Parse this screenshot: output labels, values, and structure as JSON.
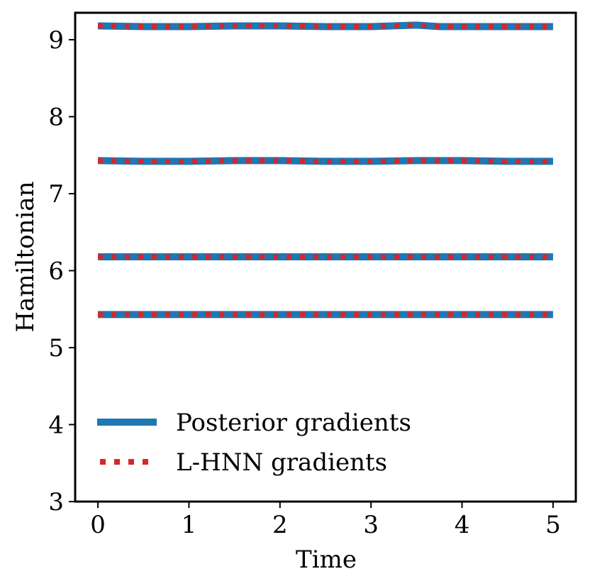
{
  "chart_data": {
    "type": "line",
    "xlabel": "Time",
    "ylabel": "Hamiltonian",
    "xlim": [
      -0.25,
      5.25
    ],
    "ylim": [
      3,
      9.35
    ],
    "xticks": [
      0,
      1,
      2,
      3,
      4,
      5
    ],
    "yticks": [
      3,
      4,
      5,
      6,
      7,
      8,
      9
    ],
    "xtick_labels": [
      "0",
      "1",
      "2",
      "3",
      "4",
      "5"
    ],
    "ytick_labels": [
      "3",
      "4",
      "5",
      "6",
      "7",
      "8",
      "9"
    ],
    "grid": false,
    "legend_position": "lower-left",
    "series": [
      {
        "name": "Posterior gradients",
        "color": "#1f77b4",
        "style": "solid",
        "trajectories": [
          {
            "x": [
              0,
              0.5,
              1,
              1.5,
              2,
              2.5,
              3,
              3.5,
              3.75,
              4,
              4.5,
              5
            ],
            "y": [
              9.18,
              9.17,
              9.17,
              9.18,
              9.18,
              9.17,
              9.17,
              9.19,
              9.17,
              9.17,
              9.17,
              9.17
            ]
          },
          {
            "x": [
              0,
              0.5,
              1,
              1.5,
              2,
              2.5,
              3,
              3.5,
              4,
              4.5,
              5
            ],
            "y": [
              7.43,
              7.42,
              7.42,
              7.43,
              7.43,
              7.42,
              7.42,
              7.43,
              7.43,
              7.42,
              7.42
            ]
          },
          {
            "x": [
              0,
              0.5,
              1,
              1.5,
              2,
              2.5,
              3,
              3.5,
              4,
              4.5,
              5
            ],
            "y": [
              6.18,
              6.18,
              6.18,
              6.18,
              6.18,
              6.18,
              6.18,
              6.18,
              6.18,
              6.18,
              6.18
            ]
          },
          {
            "x": [
              0,
              0.5,
              1,
              1.5,
              2,
              2.5,
              3,
              3.5,
              4,
              4.5,
              5
            ],
            "y": [
              5.43,
              5.43,
              5.43,
              5.43,
              5.43,
              5.43,
              5.43,
              5.43,
              5.43,
              5.43,
              5.43
            ]
          }
        ]
      },
      {
        "name": "L-HNN gradients",
        "color": "#d62728",
        "style": "dotted",
        "trajectories": [
          {
            "x": [
              0,
              0.5,
              1,
              1.5,
              2,
              2.5,
              3,
              3.5,
              3.75,
              4,
              4.5,
              5
            ],
            "y": [
              9.18,
              9.17,
              9.17,
              9.18,
              9.18,
              9.17,
              9.17,
              9.19,
              9.17,
              9.17,
              9.17,
              9.17
            ]
          },
          {
            "x": [
              0,
              0.5,
              1,
              1.5,
              2,
              2.5,
              3,
              3.5,
              4,
              4.5,
              5
            ],
            "y": [
              7.43,
              7.42,
              7.42,
              7.43,
              7.43,
              7.42,
              7.42,
              7.43,
              7.43,
              7.42,
              7.42
            ]
          },
          {
            "x": [
              0,
              0.5,
              1,
              1.5,
              2,
              2.5,
              3,
              3.5,
              4,
              4.5,
              5
            ],
            "y": [
              6.18,
              6.18,
              6.18,
              6.18,
              6.18,
              6.18,
              6.18,
              6.18,
              6.18,
              6.18,
              6.18
            ]
          },
          {
            "x": [
              0,
              0.5,
              1,
              1.5,
              2,
              2.5,
              3,
              3.5,
              4,
              4.5,
              5
            ],
            "y": [
              5.43,
              5.43,
              5.43,
              5.43,
              5.43,
              5.43,
              5.43,
              5.43,
              5.43,
              5.43,
              5.43
            ]
          }
        ]
      }
    ]
  }
}
